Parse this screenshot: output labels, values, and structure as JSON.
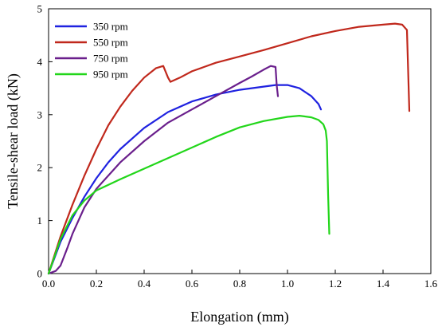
{
  "chart_data": {
    "type": "line",
    "title": "",
    "xlabel": "Elongation (mm)",
    "ylabel": "Tensile-shear load (kN)",
    "xlim": [
      0,
      1.6
    ],
    "ylim": [
      0,
      5
    ],
    "xticks": [
      0.0,
      0.2,
      0.4,
      0.6,
      0.8,
      1.0,
      1.2,
      1.4,
      1.6
    ],
    "xtick_labels": [
      "0.0",
      "0.2",
      "0.4",
      "0.6",
      "0.8",
      "1.0",
      "1.2",
      "1.4",
      "1.6"
    ],
    "yticks": [
      0,
      1,
      2,
      3,
      4,
      5
    ],
    "ytick_labels": [
      "0",
      "1",
      "2",
      "3",
      "4",
      "5"
    ],
    "grid": false,
    "legend_position": "top-left",
    "series": [
      {
        "name": "350 rpm",
        "color": "#1f22e0",
        "x": [
          0.0,
          0.05,
          0.1,
          0.15,
          0.2,
          0.25,
          0.3,
          0.35,
          0.4,
          0.5,
          0.6,
          0.7,
          0.8,
          0.9,
          0.95,
          1.0,
          1.05,
          1.1,
          1.13,
          1.14
        ],
        "y": [
          0.0,
          0.6,
          1.05,
          1.45,
          1.8,
          2.1,
          2.35,
          2.55,
          2.75,
          3.05,
          3.25,
          3.38,
          3.47,
          3.53,
          3.56,
          3.56,
          3.5,
          3.35,
          3.2,
          3.1
        ]
      },
      {
        "name": "550 rpm",
        "color": "#c0281c",
        "x": [
          0.0,
          0.05,
          0.1,
          0.15,
          0.2,
          0.25,
          0.3,
          0.35,
          0.4,
          0.45,
          0.48,
          0.5,
          0.51,
          0.55,
          0.6,
          0.7,
          0.8,
          0.9,
          1.0,
          1.1,
          1.2,
          1.3,
          1.4,
          1.45,
          1.48,
          1.5,
          1.51
        ],
        "y": [
          0.0,
          0.7,
          1.3,
          1.85,
          2.35,
          2.8,
          3.15,
          3.45,
          3.7,
          3.88,
          3.92,
          3.7,
          3.62,
          3.7,
          3.82,
          3.98,
          4.1,
          4.22,
          4.35,
          4.48,
          4.58,
          4.66,
          4.7,
          4.72,
          4.7,
          4.6,
          3.07
        ]
      },
      {
        "name": "750 rpm",
        "color": "#6a1f8c",
        "x": [
          0.0,
          0.03,
          0.05,
          0.08,
          0.1,
          0.15,
          0.2,
          0.3,
          0.4,
          0.5,
          0.6,
          0.7,
          0.8,
          0.85,
          0.9,
          0.93,
          0.95,
          0.955,
          0.96
        ],
        "y": [
          0.0,
          0.05,
          0.15,
          0.5,
          0.75,
          1.25,
          1.6,
          2.1,
          2.5,
          2.85,
          3.1,
          3.35,
          3.6,
          3.72,
          3.85,
          3.92,
          3.9,
          3.55,
          3.35
        ]
      },
      {
        "name": "950 rpm",
        "color": "#22d61a",
        "x": [
          0.0,
          0.05,
          0.1,
          0.15,
          0.2,
          0.3,
          0.4,
          0.5,
          0.6,
          0.7,
          0.8,
          0.9,
          1.0,
          1.05,
          1.1,
          1.13,
          1.15,
          1.16,
          1.165,
          1.17,
          1.175
        ],
        "y": [
          0.0,
          0.65,
          1.1,
          1.38,
          1.57,
          1.78,
          1.98,
          2.18,
          2.38,
          2.58,
          2.76,
          2.88,
          2.96,
          2.98,
          2.95,
          2.9,
          2.82,
          2.7,
          2.5,
          1.5,
          0.75
        ]
      }
    ]
  }
}
